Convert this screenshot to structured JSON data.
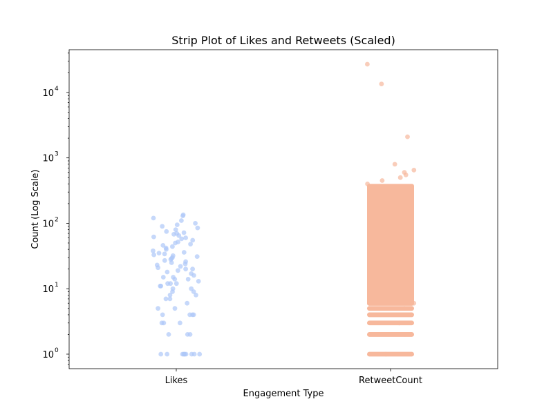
{
  "chart_data": {
    "type": "scatter",
    "subtype": "strip",
    "title": "Strip Plot of Likes and Retweets (Scaled)",
    "xlabel": "Engagement Type",
    "ylabel": "Count (Log Scale)",
    "yscale": "log",
    "ylim": [
      0.6,
      45000
    ],
    "categories": [
      "Likes",
      "RetweetCount"
    ],
    "yticks": [
      {
        "value": 1,
        "base": "10",
        "exp": "0"
      },
      {
        "value": 10,
        "base": "10",
        "exp": "1"
      },
      {
        "value": 100,
        "base": "10",
        "exp": "2"
      },
      {
        "value": 1000,
        "base": "10",
        "exp": "3"
      },
      {
        "value": 10000,
        "base": "10",
        "exp": "4"
      }
    ],
    "grid": false,
    "series": [
      {
        "category": "Likes",
        "color": "#aec7f8",
        "values": [
          1,
          1,
          1,
          1,
          1,
          1,
          1,
          1,
          1,
          1,
          2,
          2,
          2,
          3,
          3,
          3,
          4,
          4,
          4,
          4,
          5,
          5,
          6,
          7,
          7,
          8,
          8,
          9,
          9,
          10,
          10,
          11,
          11,
          12,
          12,
          12,
          13,
          14,
          14,
          15,
          15,
          16,
          17,
          18,
          19,
          20,
          20,
          21,
          22,
          23,
          24,
          25,
          26,
          27,
          28,
          29,
          30,
          31,
          32,
          33,
          34,
          35,
          36,
          38,
          40,
          42,
          44,
          46,
          48,
          50,
          52,
          55,
          58,
          60,
          62,
          65,
          68,
          70,
          72,
          75,
          80,
          85,
          90,
          95,
          100,
          110,
          120,
          130,
          135
        ]
      },
      {
        "category": "RetweetCount",
        "color": "#f7b89c",
        "values": [
          1,
          2,
          3,
          4,
          5,
          6,
          7,
          8,
          10,
          12,
          15,
          20,
          25,
          30,
          40,
          50,
          60,
          80,
          100,
          130,
          160,
          200,
          250,
          300,
          350,
          400,
          450,
          500,
          550,
          600,
          650,
          800,
          2100,
          13500,
          27000
        ]
      }
    ]
  }
}
